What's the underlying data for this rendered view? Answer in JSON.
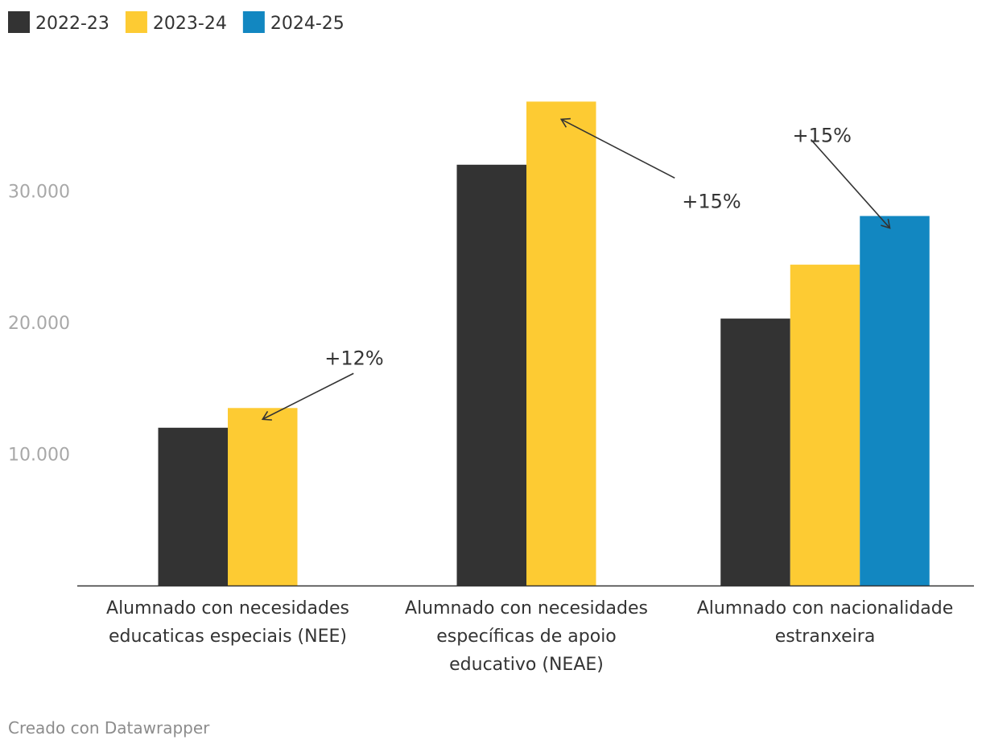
{
  "chart_data": {
    "type": "bar",
    "legend_position": "top-left",
    "series": [
      {
        "name": "2022-23",
        "color": "#333333",
        "values": [
          12000,
          32000,
          20300
        ]
      },
      {
        "name": "2023-24",
        "color": "#fdcb33",
        "values": [
          13500,
          36800,
          24400
        ]
      },
      {
        "name": "2024-25",
        "color": "#1287c1",
        "values": [
          null,
          null,
          28100
        ]
      }
    ],
    "categories": [
      {
        "lines": [
          "Alumnado con necesidades",
          "educaticas especiais (NEE)"
        ]
      },
      {
        "lines": [
          "Alumnado con necesidades",
          "específicas de apoio",
          "educativo (NEAE)"
        ]
      },
      {
        "lines": [
          "Alumnado con nacionalidade",
          "estranxeira"
        ]
      }
    ],
    "y_ticks": [
      {
        "value": 10000,
        "label": "10.000"
      },
      {
        "value": 20000,
        "label": "20.000"
      },
      {
        "value": 30000,
        "label": "30.000"
      }
    ],
    "ylim": [
      0,
      40000
    ],
    "grid": false,
    "annotations": [
      {
        "text": "+12%",
        "category": 0,
        "series": 1
      },
      {
        "text": "+15%",
        "category": 1,
        "series": 1
      },
      {
        "text": "+15%",
        "category": 2,
        "series": 2
      }
    ]
  },
  "footer": {
    "credit": "Creado con Datawrapper"
  },
  "colors": {
    "axis": "#333333",
    "tick_text": "#a8a8a8",
    "footer_text": "#8c8c8c"
  }
}
